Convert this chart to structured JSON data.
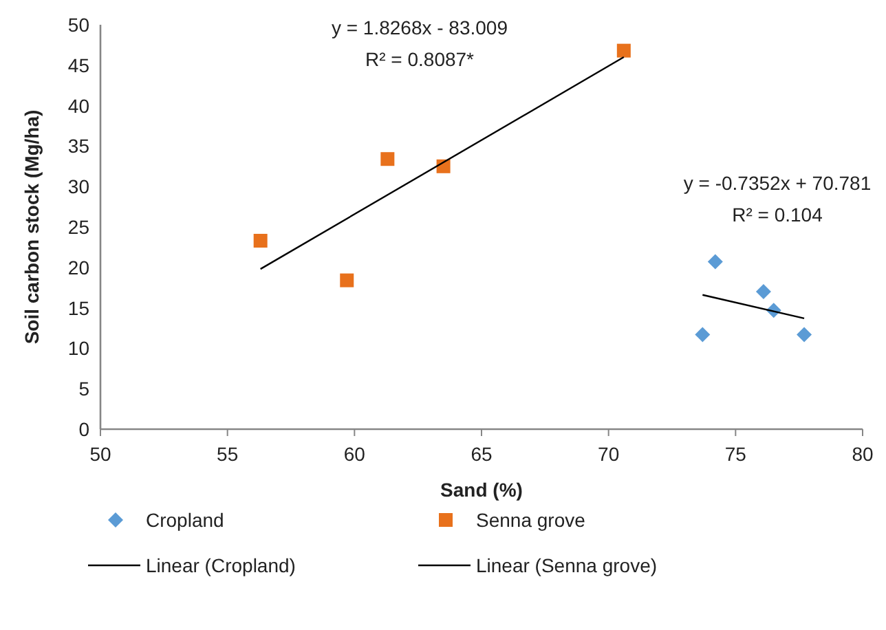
{
  "chart_data": {
    "type": "scatter",
    "xlabel": "Sand (%)",
    "ylabel": "Soil carbon stock (Mg/ha)",
    "xlim": [
      50,
      80
    ],
    "xticks": [
      50,
      55,
      60,
      65,
      70,
      75,
      80
    ],
    "ylim": [
      0,
      50
    ],
    "yticks": [
      0,
      5,
      10,
      15,
      20,
      25,
      30,
      35,
      40,
      45,
      50
    ],
    "grid": false,
    "legend": "bottom",
    "series": [
      {
        "name": "Cropland",
        "type": "scatter",
        "marker": "diamond",
        "color": "#5b9bd5",
        "x": [
          74.2,
          73.7,
          76.1,
          76.5,
          77.7
        ],
        "values": [
          20.7,
          11.7,
          17.0,
          14.7,
          11.7
        ]
      },
      {
        "name": "Senna grove",
        "type": "scatter",
        "marker": "square",
        "color": "#e8711c",
        "x": [
          56.3,
          59.7,
          61.3,
          63.5,
          70.6
        ],
        "values": [
          23.3,
          18.4,
          33.4,
          32.5,
          46.8
        ]
      },
      {
        "name": "Linear (Cropland)",
        "type": "line",
        "color": "#000000",
        "x": [
          73.7,
          77.7
        ],
        "values": [
          16.6,
          13.7
        ]
      },
      {
        "name": "Linear (Senna grove)",
        "type": "line",
        "color": "#000000",
        "x": [
          56.3,
          70.6
        ],
        "values": [
          19.8,
          46.0
        ]
      }
    ],
    "annotations": [
      "y = 1.8268x - 83.009",
      "R² = 0.8087*",
      "y = -0.7352x + 70.781",
      "R² = 0.104"
    ]
  }
}
